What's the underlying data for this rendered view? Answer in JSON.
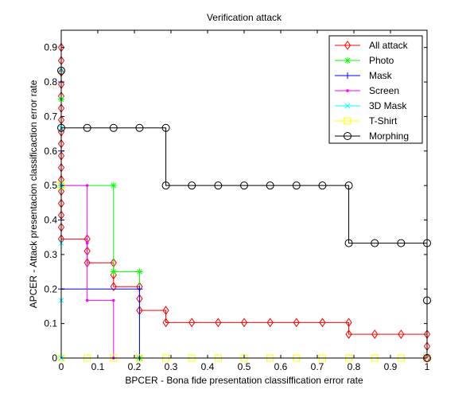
{
  "chart_data": {
    "type": "line",
    "title": "Verification attack",
    "xlabel": "BPCER - Bona fide presentation classiffication error rate",
    "ylabel": "APCER - Attack presentacion classificaction error rate",
    "xlim": [
      0,
      1
    ],
    "ylim": [
      0,
      0.95
    ],
    "xticks": [
      "0",
      "0.1",
      "0.2",
      "0.3",
      "0.4",
      "0.5",
      "0.6",
      "0.7",
      "0.8",
      "0.9",
      "1"
    ],
    "yticks": [
      "0",
      "0.1",
      "0.2",
      "0.3",
      "0.4",
      "0.5",
      "0.6",
      "0.7",
      "0.8",
      "0.9"
    ],
    "grid": false,
    "legend_position": "top-right",
    "series": [
      {
        "name": "All attack",
        "color": "#ff0000",
        "marker": "diamond",
        "x": [
          0,
          0,
          0,
          0,
          0,
          0,
          0,
          0,
          0,
          0,
          0,
          0,
          0,
          0,
          0,
          0,
          0,
          0.071,
          0.071,
          0.071,
          0.143,
          0.143,
          0.143,
          0.214,
          0.214,
          0.214,
          0.286,
          0.286,
          0.357,
          0.429,
          0.5,
          0.571,
          0.643,
          0.714,
          0.786,
          0.786,
          0.857,
          0.929,
          1,
          1,
          1
        ],
        "y": [
          0.9,
          0.862,
          0.828,
          0.793,
          0.759,
          0.724,
          0.69,
          0.655,
          0.621,
          0.586,
          0.552,
          0.517,
          0.483,
          0.448,
          0.414,
          0.379,
          0.345,
          0.345,
          0.31,
          0.276,
          0.276,
          0.241,
          0.207,
          0.207,
          0.172,
          0.138,
          0.138,
          0.103,
          0.103,
          0.103,
          0.103,
          0.103,
          0.103,
          0.103,
          0.103,
          0.069,
          0.069,
          0.069,
          0.069,
          0.034,
          0
        ]
      },
      {
        "name": "Photo",
        "color": "#00ff00",
        "marker": "star",
        "x": [
          0,
          0,
          0.143,
          0.143,
          0.214,
          0.214
        ],
        "y": [
          0.75,
          0.5,
          0.5,
          0.25,
          0.25,
          0
        ]
      },
      {
        "name": "Mask",
        "color": "#0000ff",
        "marker": "plus",
        "x": [
          0,
          0,
          0,
          0,
          0.214,
          0.214
        ],
        "y": [
          0.8,
          0.6,
          0.4,
          0.2,
          0.2,
          0
        ]
      },
      {
        "name": "Screen",
        "color": "#ff00ff",
        "marker": "dot",
        "x": [
          0,
          0.071,
          0.071,
          0.071,
          0.143,
          0.143
        ],
        "y": [
          0.5,
          0.5,
          0.333,
          0.167,
          0.167,
          0
        ]
      },
      {
        "name": "3D Mask",
        "color": "#00ffff",
        "marker": "x",
        "x": [
          0,
          0,
          0,
          0,
          0,
          0
        ],
        "y": [
          0.833,
          0.667,
          0.5,
          0.333,
          0.167,
          0
        ]
      },
      {
        "name": "T-Shirt",
        "color": "#ffff00",
        "marker": "square",
        "x": [
          0,
          0,
          0.071,
          0.143,
          0.214,
          0.286,
          0.357,
          0.429,
          0.5,
          0.571,
          0.643,
          0.714,
          0.786,
          0.857,
          0.929,
          1
        ],
        "y": [
          0.5,
          0,
          0,
          0,
          0,
          0,
          0,
          0,
          0,
          0,
          0,
          0,
          0,
          0,
          0,
          0
        ]
      },
      {
        "name": "Morphing",
        "color": "#000000",
        "marker": "circle",
        "x": [
          0,
          0,
          0.071,
          0.143,
          0.214,
          0.286,
          0.286,
          0.357,
          0.429,
          0.5,
          0.571,
          0.643,
          0.714,
          0.786,
          0.786,
          0.857,
          0.929,
          1,
          1,
          1
        ],
        "y": [
          0.833,
          0.667,
          0.667,
          0.667,
          0.667,
          0.667,
          0.5,
          0.5,
          0.5,
          0.5,
          0.5,
          0.5,
          0.5,
          0.5,
          0.333,
          0.333,
          0.333,
          0.333,
          0.167,
          0
        ]
      }
    ]
  }
}
